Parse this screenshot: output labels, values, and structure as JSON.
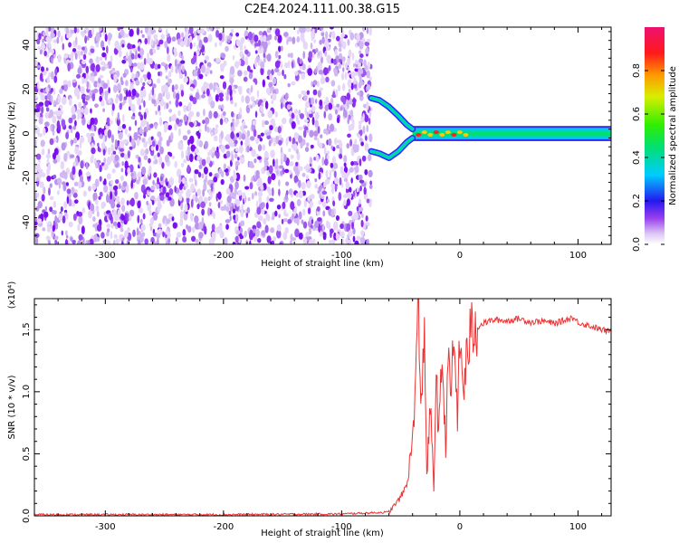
{
  "figure_title": "C2E4.2024.111.00.38.G15",
  "chart_data": [
    {
      "type": "heatmap",
      "xlabel": "Height of straight line (km)",
      "ylabel": "Frequency (Hz)",
      "xlim": [
        -360,
        128
      ],
      "ylim": [
        -50,
        48
      ],
      "x_ticks": [
        -300,
        -200,
        -100,
        0,
        100
      ],
      "y_ticks": [
        -40,
        -20,
        0,
        20,
        40
      ],
      "x_tick_labels": [
        "-300",
        "-200",
        "-100",
        "0",
        "100"
      ],
      "y_tick_labels": [
        "-40",
        "-20",
        "0",
        "20",
        "40"
      ],
      "noise_region": {
        "x_range": [
          -360,
          -75
        ],
        "y_range": [
          -50,
          48
        ]
      },
      "signal_branches": [
        {
          "x": [
            -75,
            -68,
            -60,
            -52,
            -45,
            -40
          ],
          "y": [
            16,
            15,
            12,
            8,
            4,
            2
          ]
        },
        {
          "x": [
            -75,
            -68,
            -60,
            -52,
            -45,
            -40
          ],
          "y": [
            -8,
            -9,
            -11,
            -8,
            -4,
            -2
          ]
        }
      ],
      "signal_line": {
        "x_range": [
          -40,
          128
        ],
        "y": 0,
        "half_width": 3
      },
      "colorbar": {
        "label": "Normalized spectral amplitude",
        "range": [
          0,
          1
        ],
        "ticks": [
          0.0,
          0.2,
          0.4,
          0.6,
          0.8
        ],
        "tick_labels": [
          "0.0",
          "0.2",
          "0.4",
          "0.6",
          "0.8"
        ]
      }
    },
    {
      "type": "line",
      "xlabel": "Height of straight line (km)",
      "ylabel": "SNR (10 * v/v)",
      "y_multiplier_label": "(x10⁴)",
      "xlim": [
        -360,
        128
      ],
      "ylim": [
        0,
        1.75
      ],
      "x_ticks": [
        -300,
        -200,
        -100,
        0,
        100
      ],
      "y_ticks": [
        0.0,
        0.5,
        1.0,
        1.5
      ],
      "x_tick_labels": [
        "-300",
        "-200",
        "-100",
        "0",
        "100"
      ],
      "y_tick_labels": [
        "0.0",
        "0.5",
        "1.0",
        "1.5"
      ],
      "series": [
        {
          "color": "#ee3333",
          "x": [
            -360,
            -300,
            -200,
            -100,
            -60,
            -50,
            -45,
            -40,
            -38,
            -35,
            -33,
            -30,
            -28,
            -25,
            -22,
            -20,
            -18,
            -15,
            -12,
            -10,
            -8,
            -5,
            -2,
            0,
            3,
            6,
            10,
            15,
            20,
            25,
            30,
            40,
            50,
            60,
            70,
            80,
            90,
            95,
            100,
            110,
            120,
            128
          ],
          "y": [
            0.01,
            0.01,
            0.01,
            0.015,
            0.03,
            0.15,
            0.25,
            0.6,
            1.0,
            1.7,
            0.8,
            1.6,
            0.3,
            0.9,
            0.2,
            1.25,
            0.6,
            1.3,
            0.55,
            1.35,
            0.9,
            1.45,
            0.8,
            1.4,
            1.0,
            1.3,
            1.5,
            1.52,
            1.55,
            1.57,
            1.58,
            1.57,
            1.59,
            1.56,
            1.57,
            1.55,
            1.58,
            1.6,
            1.56,
            1.53,
            1.5,
            1.48
          ]
        }
      ]
    }
  ]
}
